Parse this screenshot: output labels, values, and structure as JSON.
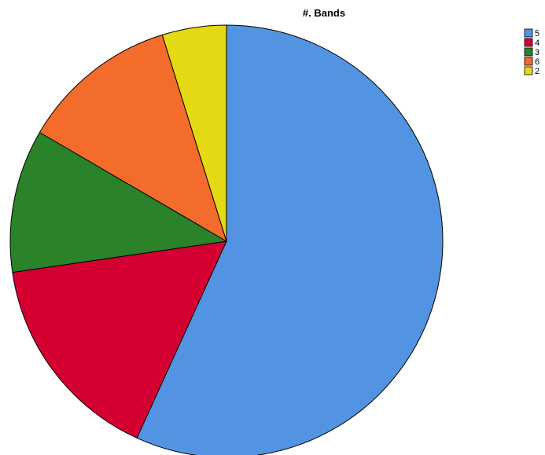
{
  "chart_data": {
    "type": "pie",
    "title": "#. Bands",
    "legend_position": "top-right",
    "slices": [
      {
        "label": "5",
        "value": 56.8,
        "color": "#5294E2"
      },
      {
        "label": "4",
        "value": 15.9,
        "color": "#D50032"
      },
      {
        "label": "3",
        "value": 10.7,
        "color": "#2A8229"
      },
      {
        "label": "6",
        "value": 11.8,
        "color": "#F46C2B"
      },
      {
        "label": "2",
        "value": 4.8,
        "color": "#E5D814"
      }
    ]
  }
}
